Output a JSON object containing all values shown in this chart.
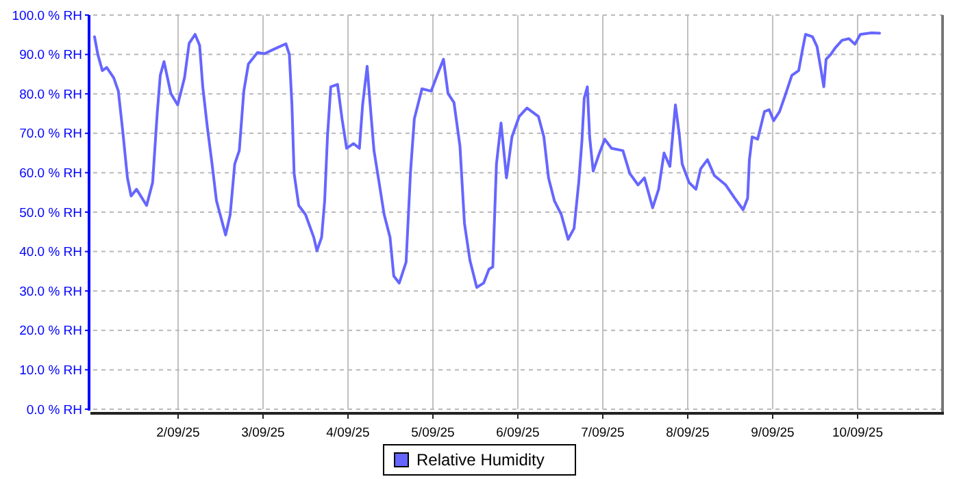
{
  "chart_data": {
    "type": "line",
    "xlim": [
      "--09-01",
      "--09-11"
    ],
    "ylim": [
      0,
      100
    ],
    "xticks": [
      {
        "value": "--09-02",
        "label": "2/09/25"
      },
      {
        "value": "--09-03",
        "label": "3/09/25"
      },
      {
        "value": "--09-04",
        "label": "4/09/25"
      },
      {
        "value": "--09-05",
        "label": "5/09/25"
      },
      {
        "value": "--09-06",
        "label": "6/09/25"
      },
      {
        "value": "--09-07",
        "label": "7/09/25"
      },
      {
        "value": "--09-08",
        "label": "8/09/25"
      },
      {
        "value": "--09-09",
        "label": "9/09/25"
      },
      {
        "value": "--09-10",
        "label": "10/09/25"
      }
    ],
    "yticks": [
      {
        "value": 0,
        "label": "0.0 % RH"
      },
      {
        "value": 10,
        "label": "10.0 % RH"
      },
      {
        "value": 20,
        "label": "20.0 % RH"
      },
      {
        "value": 30,
        "label": "30.0 % RH"
      },
      {
        "value": 40,
        "label": "40.0 % RH"
      },
      {
        "value": 50,
        "label": "50.0 % RH"
      },
      {
        "value": 60,
        "label": "60.0 % RH"
      },
      {
        "value": 70,
        "label": "70.0 % RH"
      },
      {
        "value": 80,
        "label": "80.0 % RH"
      },
      {
        "value": 90,
        "label": "90.0 % RH"
      },
      {
        "value": 100,
        "label": "100.0 % RH"
      }
    ],
    "grid": true,
    "legend": "bottom",
    "marker": "none",
    "line_style": "solid",
    "series": [
      {
        "name": "Relative Humidity",
        "color": "#6666ff",
        "x": [
          "--09-01T00:23",
          "--09-01T01:19",
          "--09-01T02:36",
          "--09-01T03:50",
          "--09-01T05:48",
          "--09-01T07:07",
          "--09-01T08:24",
          "--09-01T09:41",
          "--09-01T10:43",
          "--09-01T12:16",
          "--09-01T15:06",
          "--09-01T16:48",
          "--09-01T18:05",
          "--09-01T18:58",
          "--09-01T20:01",
          "--09-01T21:57",
          "--09-01T23:53",
          "--09-02T01:49",
          "--09-02T03:07",
          "--09-02T04:48",
          "--09-02T06:05",
          "--09-02T06:58",
          "--09-02T08:17",
          "--09-02T09:36",
          "--09-02T10:50",
          "--09-02T13:26",
          "--09-02T14:43",
          "--09-02T16:00",
          "--09-02T17:17",
          "--09-02T18:34",
          "--09-02T19:52",
          "--09-02T22:26",
          "--09-03T00:23",
          "--09-03T02:59",
          "--09-03T06:28",
          "--09-03T07:26",
          "--09-03T08:10",
          "--09-03T08:47",
          "--09-03T10:05",
          "--09-03T12:00",
          "--09-03T14:20",
          "--09-03T15:14",
          "--09-03T16:33",
          "--09-03T17:25",
          "--09-03T18:12",
          "--09-03T19:08",
          "--09-03T21:03",
          "--09-03T22:19",
          "--09-03T23:37",
          "--09-04T01:33",
          "--09-04T03:14",
          "--09-04T04:08",
          "--09-04T05:25",
          "--09-04T06:04",
          "--09-04T07:21",
          "--09-04T08:54",
          "--09-04T10:13",
          "--09-04T11:53",
          "--09-04T12:56",
          "--09-04T14:29",
          "--09-04T16:25",
          "--09-04T17:41",
          "--09-04T18:45",
          "--09-04T20:54",
          "--09-04T23:30",
          "--09-05T01:26",
          "--09-05T02:59",
          "--09-05T04:16",
          "--09-05T05:57",
          "--09-05T07:38",
          "--09-05T08:55",
          "--09-05T10:27",
          "--09-05T12:23",
          "--09-05T14:20",
          "--09-05T15:50",
          "--09-05T16:55",
          "--09-05T17:57",
          "--09-05T19:15",
          "--09-05T20:47",
          "--09-05T22:20",
          "--09-06T00:23",
          "--09-06T02:35",
          "--09-06T05:48",
          "--09-06T07:21",
          "--09-06T08:40",
          "--09-06T10:19",
          "--09-06T12:16",
          "--09-06T14:12",
          "--09-06T15:53",
          "--09-06T17:12",
          "--09-06T18:06",
          "--09-06T18:45",
          "--09-06T19:38",
          "--09-06T20:17",
          "--09-06T21:17",
          "--09-06T22:51",
          "--09-07T00:33",
          "--09-07T02:28",
          "--09-07T05:41",
          "--09-07T07:38",
          "--09-07T09:58",
          "--09-07T11:46",
          "--09-07T14:05",
          "--09-07T15:46",
          "--09-07T17:18",
          "--09-07T18:58",
          "--09-07T20:31",
          "--09-07T21:33",
          "--09-07T22:26",
          "--09-08T00:23",
          "--09-08T02:19",
          "--09-08T03:39",
          "--09-08T05:34",
          "--09-08T07:31",
          "--09-08T10:44",
          "--09-08T13:19",
          "--09-08T15:39",
          "--09-08T16:55",
          "--09-08T17:25",
          "--09-08T18:12",
          "--09-08T19:45",
          "--09-08T21:40",
          "--09-08T23:00",
          "--09-09T00:16",
          "--09-09T01:56",
          "--09-09T03:29",
          "--09-09T05:25",
          "--09-09T07:21",
          "--09-09T08:24",
          "--09-09T09:17",
          "--09-09T11:14",
          "--09-09T12:32",
          "--09-09T13:48",
          "--09-09T14:27",
          "--09-09T15:06",
          "--09-09T16:23",
          "--09-09T17:41",
          "--09-09T19:36",
          "--09-09T21:33",
          "--09-09T23:14",
          "--09-10T00:46",
          "--09-10T04:00",
          "--09-10T06:12"
        ],
        "values": [
          94.5,
          90,
          85.9,
          86.7,
          84.1,
          80.7,
          70.2,
          58.7,
          54.1,
          55.8,
          51.7,
          57.5,
          74.9,
          84.7,
          88.2,
          80.1,
          77.2,
          84.1,
          92.8,
          95.1,
          92.3,
          81.8,
          71.4,
          62.2,
          52.9,
          44.2,
          49.4,
          62.2,
          65.6,
          80.7,
          87.6,
          90.5,
          90.2,
          91.3,
          92.7,
          90,
          77.2,
          59.8,
          51.7,
          49.4,
          43.6,
          40.2,
          43.6,
          52.9,
          69.1,
          81.8,
          82.4,
          73.7,
          66.2,
          67.4,
          66.2,
          77.2,
          87,
          79.5,
          65.6,
          56.9,
          49.4,
          43.6,
          33.8,
          32,
          37.3,
          60.4,
          73.7,
          81.3,
          80.7,
          85.3,
          88.8,
          80.1,
          77.8,
          66.8,
          47.1,
          37.8,
          30.9,
          32,
          35.5,
          36.1,
          62.2,
          72.6,
          58.7,
          69.1,
          74.3,
          76.4,
          74.3,
          69.1,
          58.7,
          52.9,
          49.4,
          43.1,
          45.9,
          57.5,
          68,
          78.9,
          81.8,
          69.1,
          60.4,
          64.5,
          68.5,
          66.2,
          65.6,
          59.8,
          56.9,
          58.7,
          51.1,
          55.8,
          65,
          61.6,
          77.2,
          70.2,
          62.2,
          57.5,
          55.8,
          61,
          63.3,
          59.3,
          56.9,
          53.5,
          50.6,
          53.5,
          63.3,
          69.1,
          68.5,
          75.5,
          76,
          73.2,
          75.5,
          79.5,
          84.7,
          85.9,
          91.1,
          95.1,
          94.5,
          92,
          85.3,
          81.8,
          88.8,
          90,
          91.7,
          93.6,
          94,
          92.6,
          95.1,
          95.5,
          95.4
        ]
      }
    ]
  }
}
